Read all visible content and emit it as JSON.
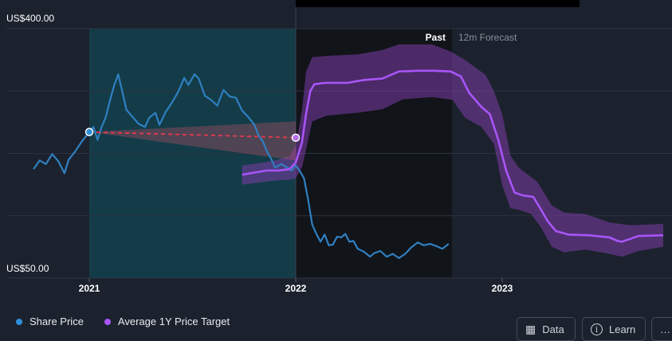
{
  "chart_data": {
    "type": "line",
    "y_axis": {
      "top_label": "US$400.00",
      "bottom_label": "US$50.00",
      "ylim": [
        50,
        400
      ]
    },
    "x_axis": {
      "tick_labels": [
        "2021",
        "2022",
        "2023"
      ]
    },
    "header": {
      "past_label": "Past",
      "forecast_label": "12m Forecast"
    },
    "series": [
      {
        "name": "Share Price",
        "color": "#2f7fc1",
        "points": [
          [
            2020.73,
            203
          ],
          [
            2020.76,
            215
          ],
          [
            2020.79,
            210
          ],
          [
            2020.82,
            224
          ],
          [
            2020.85,
            214
          ],
          [
            2020.88,
            197
          ],
          [
            2020.9,
            216
          ],
          [
            2020.93,
            227
          ],
          [
            2020.96,
            240
          ],
          [
            2021.0,
            255
          ],
          [
            2021.02,
            262
          ],
          [
            2021.04,
            244
          ],
          [
            2021.06,
            262
          ],
          [
            2021.08,
            276
          ],
          [
            2021.1,
            299
          ],
          [
            2021.12,
            320
          ],
          [
            2021.14,
            336
          ],
          [
            2021.16,
            312
          ],
          [
            2021.18,
            286
          ],
          [
            2021.21,
            276
          ],
          [
            2021.24,
            266
          ],
          [
            2021.27,
            262
          ],
          [
            2021.29,
            275
          ],
          [
            2021.32,
            282
          ],
          [
            2021.34,
            265
          ],
          [
            2021.37,
            283
          ],
          [
            2021.4,
            296
          ],
          [
            2021.43,
            311
          ],
          [
            2021.46,
            331
          ],
          [
            2021.48,
            321
          ],
          [
            2021.51,
            336
          ],
          [
            2021.53,
            330
          ],
          [
            2021.56,
            306
          ],
          [
            2021.59,
            300
          ],
          [
            2021.62,
            292
          ],
          [
            2021.65,
            314
          ],
          [
            2021.68,
            305
          ],
          [
            2021.71,
            303
          ],
          [
            2021.74,
            285
          ],
          [
            2021.77,
            276
          ],
          [
            2021.8,
            265
          ],
          [
            2021.82,
            250
          ],
          [
            2021.84,
            242
          ],
          [
            2021.86,
            228
          ],
          [
            2021.88,
            218
          ],
          [
            2021.9,
            205
          ],
          [
            2021.93,
            210
          ],
          [
            2021.96,
            205
          ],
          [
            2021.98,
            201
          ],
          [
            2022.0,
            208
          ],
          [
            2022.02,
            200
          ],
          [
            2022.04,
            190
          ],
          [
            2022.06,
            160
          ],
          [
            2022.08,
            125
          ],
          [
            2022.1,
            112
          ],
          [
            2022.12,
            101
          ],
          [
            2022.14,
            111
          ],
          [
            2022.16,
            96
          ],
          [
            2022.18,
            97
          ],
          [
            2022.2,
            108
          ],
          [
            2022.22,
            107
          ],
          [
            2022.24,
            112
          ],
          [
            2022.26,
            101
          ],
          [
            2022.28,
            102
          ],
          [
            2022.3,
            91
          ],
          [
            2022.33,
            87
          ],
          [
            2022.36,
            80
          ],
          [
            2022.38,
            85
          ],
          [
            2022.41,
            88
          ],
          [
            2022.44,
            80
          ],
          [
            2022.47,
            84
          ],
          [
            2022.5,
            78
          ],
          [
            2022.53,
            84
          ],
          [
            2022.56,
            93
          ],
          [
            2022.59,
            100
          ],
          [
            2022.62,
            96
          ],
          [
            2022.65,
            98
          ],
          [
            2022.68,
            95
          ],
          [
            2022.71,
            91
          ],
          [
            2022.74,
            98
          ]
        ]
      },
      {
        "name": "Average 1Y Price Target",
        "color": "#a855f7",
        "points": [
          [
            2021.74,
            195
          ],
          [
            2021.8,
            198
          ],
          [
            2021.86,
            201
          ],
          [
            2021.92,
            201
          ],
          [
            2021.97,
            203
          ],
          [
            2022.0,
            212
          ],
          [
            2022.03,
            240
          ],
          [
            2022.05,
            280
          ],
          [
            2022.07,
            312
          ],
          [
            2022.09,
            322
          ],
          [
            2022.14,
            324
          ],
          [
            2022.25,
            324
          ],
          [
            2022.33,
            328
          ],
          [
            2022.42,
            330
          ],
          [
            2022.5,
            340
          ],
          [
            2022.59,
            341
          ],
          [
            2022.67,
            341
          ],
          [
            2022.75,
            340
          ],
          [
            2022.8,
            333
          ],
          [
            2022.84,
            310
          ],
          [
            2022.9,
            290
          ],
          [
            2022.94,
            280
          ],
          [
            2022.98,
            245
          ],
          [
            2023.02,
            200
          ],
          [
            2023.06,
            170
          ],
          [
            2023.1,
            166
          ],
          [
            2023.15,
            164
          ],
          [
            2023.18,
            150
          ],
          [
            2023.22,
            130
          ],
          [
            2023.26,
            116
          ],
          [
            2023.32,
            111
          ],
          [
            2023.42,
            110
          ],
          [
            2023.52,
            107
          ],
          [
            2023.56,
            102
          ],
          [
            2023.58,
            101
          ],
          [
            2023.62,
            105
          ],
          [
            2023.66,
            109
          ],
          [
            2023.78,
            110
          ]
        ]
      }
    ],
    "forecast_band": {
      "upper": [
        [
          2021.74,
          208
        ],
        [
          2021.82,
          211
        ],
        [
          2021.9,
          215
        ],
        [
          2021.97,
          221
        ],
        [
          2022.0,
          236
        ],
        [
          2022.03,
          285
        ],
        [
          2022.05,
          340
        ],
        [
          2022.08,
          360
        ],
        [
          2022.16,
          362
        ],
        [
          2022.3,
          364
        ],
        [
          2022.42,
          370
        ],
        [
          2022.5,
          378
        ],
        [
          2022.66,
          378
        ],
        [
          2022.75,
          368
        ],
        [
          2022.82,
          356
        ],
        [
          2022.92,
          335
        ],
        [
          2022.96,
          312
        ],
        [
          2023.0,
          280
        ],
        [
          2023.04,
          222
        ],
        [
          2023.08,
          205
        ],
        [
          2023.12,
          196
        ],
        [
          2023.17,
          185
        ],
        [
          2023.24,
          152
        ],
        [
          2023.3,
          142
        ],
        [
          2023.4,
          140
        ],
        [
          2023.52,
          128
        ],
        [
          2023.62,
          124
        ],
        [
          2023.78,
          126
        ]
      ],
      "lower": [
        [
          2021.74,
          181
        ],
        [
          2021.82,
          184
        ],
        [
          2021.9,
          187
        ],
        [
          2021.97,
          188
        ],
        [
          2022.0,
          190
        ],
        [
          2022.03,
          205
        ],
        [
          2022.05,
          230
        ],
        [
          2022.08,
          270
        ],
        [
          2022.15,
          278
        ],
        [
          2022.3,
          282
        ],
        [
          2022.42,
          287
        ],
        [
          2022.52,
          301
        ],
        [
          2022.66,
          304
        ],
        [
          2022.76,
          300
        ],
        [
          2022.82,
          275
        ],
        [
          2022.9,
          262
        ],
        [
          2022.96,
          238
        ],
        [
          2023.0,
          180
        ],
        [
          2023.04,
          148
        ],
        [
          2023.08,
          146
        ],
        [
          2023.14,
          140
        ],
        [
          2023.19,
          120
        ],
        [
          2023.24,
          94
        ],
        [
          2023.3,
          86
        ],
        [
          2023.4,
          90
        ],
        [
          2023.52,
          84
        ],
        [
          2023.58,
          80
        ],
        [
          2023.66,
          88
        ],
        [
          2023.78,
          94
        ]
      ]
    },
    "projection": {
      "start": [
        2021.0,
        255
      ],
      "end": [
        2022.0,
        247
      ],
      "cone_upper_end": 270,
      "cone_lower_end": 215
    }
  },
  "legend": {
    "share_price": "Share Price",
    "price_target": "Average 1Y Price Target"
  },
  "buttons": {
    "data": "Data",
    "learn": "Learn",
    "more": "…"
  }
}
